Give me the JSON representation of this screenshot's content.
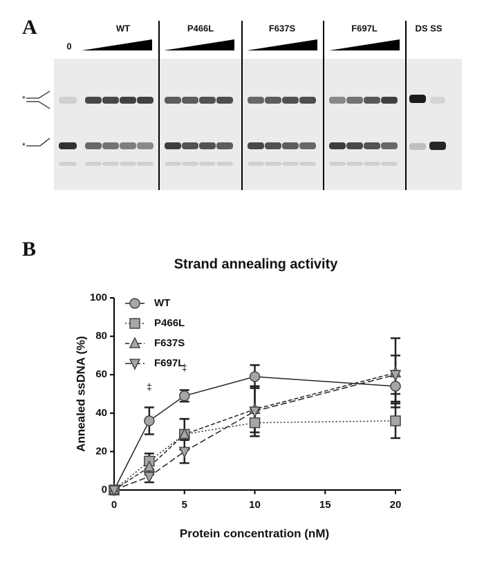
{
  "panel_a": {
    "label": "A",
    "lane_labels": [
      "0",
      "WT",
      "P466L",
      "F637S",
      "F697L",
      "DS SS"
    ]
  },
  "panel_b_label": "B",
  "chart_data": {
    "type": "line",
    "title": "Strand annealing activity",
    "x_label": "Protein concentration (nM)",
    "y_label": "Annealed ssDNA (%)",
    "x": [
      0,
      2.5,
      5,
      10,
      20
    ],
    "series": [
      {
        "name": "WT",
        "color": "#a6a6a6",
        "marker": "circle",
        "line_style": "solid",
        "values": [
          0,
          36,
          49,
          59,
          54
        ],
        "errors": [
          0,
          7,
          3,
          6,
          8
        ]
      },
      {
        "name": "P466L",
        "color": "#a6a6a6",
        "marker": "square",
        "line_style": "dotted",
        "values": [
          0,
          15,
          29,
          35,
          36
        ],
        "errors": [
          0,
          4,
          8,
          7,
          9
        ]
      },
      {
        "name": "F637S",
        "color": "#a6a6a6",
        "marker": "triangle-up",
        "line_style": "dashed",
        "values": [
          0,
          12,
          29,
          42,
          61
        ],
        "errors": [
          0,
          4,
          8,
          12,
          18
        ]
      },
      {
        "name": "F697L",
        "color": "#a6a6a6",
        "marker": "triangle-down",
        "line_style": "longdash",
        "values": [
          0,
          7,
          20,
          41,
          60
        ],
        "errors": [
          0,
          3,
          6,
          13,
          10
        ]
      }
    ],
    "annotations": [
      {
        "x": 2.5,
        "y": 49,
        "text": "‡"
      },
      {
        "x": 5,
        "y": 59,
        "text": "‡"
      }
    ],
    "xlim": [
      0,
      20
    ],
    "xticks": [
      0,
      5,
      10,
      15,
      20
    ],
    "ylim": [
      0,
      100
    ],
    "yticks": [
      0,
      20,
      40,
      60,
      80,
      100
    ],
    "legend": "upper-left"
  }
}
